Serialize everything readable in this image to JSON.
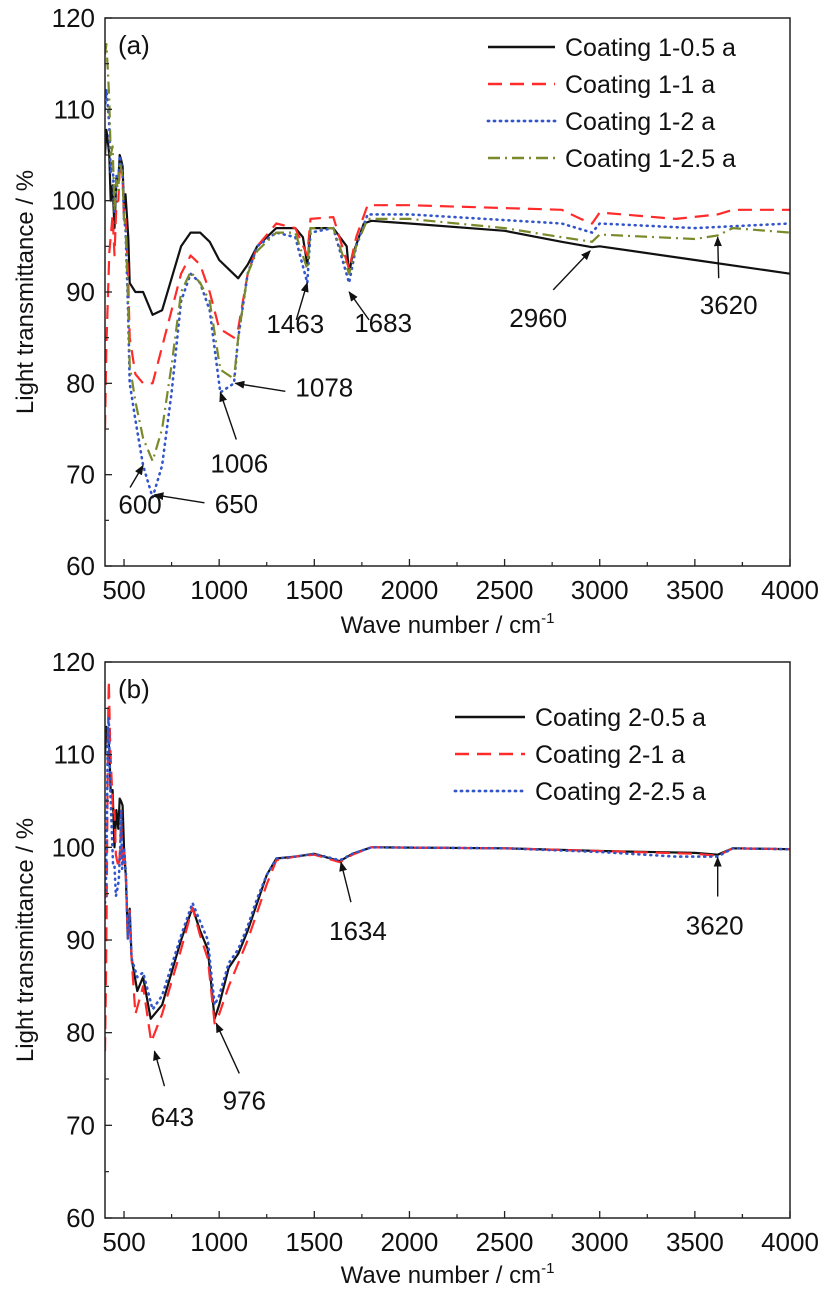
{
  "chart_data": [
    {
      "type": "line",
      "panel_label": "(a)",
      "xlabel": "Wave number / cm",
      "xlabel_sup": "-1",
      "ylabel": "Light transmittance / %",
      "xlim": [
        400,
        4000
      ],
      "ylim": [
        60,
        120
      ],
      "xticks": [
        500,
        1000,
        1500,
        2000,
        2500,
        3000,
        3500,
        4000
      ],
      "yticks": [
        60,
        70,
        80,
        90,
        100,
        110,
        120
      ],
      "legend_position": "top-right",
      "series": [
        {
          "name": "Coating 1-0.5 a",
          "color": "#111111",
          "style": "solid",
          "points": [
            [
              400,
              105
            ],
            [
              430,
              100
            ],
            [
              470,
              102
            ],
            [
              500,
              99
            ],
            [
              530,
              91
            ],
            [
              560,
              90
            ],
            [
              600,
              90
            ],
            [
              650,
              87.5
            ],
            [
              700,
              88
            ],
            [
              800,
              95
            ],
            [
              850,
              96.5
            ],
            [
              900,
              96.5
            ],
            [
              950,
              95.5
            ],
            [
              1000,
              93.5
            ],
            [
              1050,
              92.5
            ],
            [
              1100,
              91.5
            ],
            [
              1150,
              93
            ],
            [
              1200,
              95
            ],
            [
              1300,
              97
            ],
            [
              1400,
              97
            ],
            [
              1440,
              96
            ],
            [
              1463,
              93
            ],
            [
              1480,
              97
            ],
            [
              1600,
              97
            ],
            [
              1670,
              95
            ],
            [
              1683,
              92
            ],
            [
              1700,
              94
            ],
            [
              1760,
              97.5
            ],
            [
              1800,
              97.8
            ],
            [
              2000,
              97.5
            ],
            [
              2500,
              96.7
            ],
            [
              2800,
              95.5
            ],
            [
              2960,
              94.9
            ],
            [
              3000,
              95
            ],
            [
              3500,
              93.5
            ],
            [
              4000,
              92
            ]
          ]
        },
        {
          "name": "Coating 1-1 a",
          "color": "#ff2a2a",
          "style": "dash",
          "points": [
            [
              400,
              75
            ],
            [
              430,
              96
            ],
            [
              470,
              100
            ],
            [
              500,
              98
            ],
            [
              530,
              85
            ],
            [
              560,
              81
            ],
            [
              600,
              80
            ],
            [
              650,
              80
            ],
            [
              700,
              84
            ],
            [
              800,
              92
            ],
            [
              850,
              94
            ],
            [
              900,
              93
            ],
            [
              950,
              90
            ],
            [
              1000,
              86
            ],
            [
              1078,
              85
            ],
            [
              1100,
              86
            ],
            [
              1150,
              92
            ],
            [
              1200,
              95
            ],
            [
              1300,
              97.5
            ],
            [
              1400,
              97
            ],
            [
              1463,
              94
            ],
            [
              1480,
              98
            ],
            [
              1600,
              98.2
            ],
            [
              1683,
              92.5
            ],
            [
              1720,
              96
            ],
            [
              1780,
              99.5
            ],
            [
              2000,
              99.5
            ],
            [
              2800,
              99
            ],
            [
              2900,
              98
            ],
            [
              2960,
              97.5
            ],
            [
              3000,
              98.7
            ],
            [
              3400,
              98
            ],
            [
              3620,
              98.5
            ],
            [
              3700,
              99
            ],
            [
              4000,
              99
            ]
          ]
        },
        {
          "name": "Coating 1-2 a",
          "color": "#3355cc",
          "style": "dot",
          "points": [
            [
              400,
              110
            ],
            [
              430,
              103
            ],
            [
              470,
              102
            ],
            [
              500,
              98
            ],
            [
              530,
              80
            ],
            [
              560,
              76
            ],
            [
              600,
              71
            ],
            [
              650,
              67.5
            ],
            [
              700,
              71
            ],
            [
              750,
              79
            ],
            [
              800,
              89
            ],
            [
              850,
              92
            ],
            [
              900,
              91
            ],
            [
              950,
              88
            ],
            [
              1006,
              79
            ],
            [
              1078,
              80
            ],
            [
              1100,
              85
            ],
            [
              1150,
              92
            ],
            [
              1200,
              95
            ],
            [
              1300,
              96.5
            ],
            [
              1400,
              96
            ],
            [
              1463,
              91
            ],
            [
              1480,
              96.5
            ],
            [
              1600,
              97
            ],
            [
              1683,
              91
            ],
            [
              1720,
              95
            ],
            [
              1780,
              98.5
            ],
            [
              2000,
              98.5
            ],
            [
              2800,
              97.5
            ],
            [
              2960,
              96.5
            ],
            [
              3000,
              97.5
            ],
            [
              3500,
              97
            ],
            [
              4000,
              97.5
            ]
          ]
        },
        {
          "name": "Coating 1-2.5 a",
          "color": "#7a8a2a",
          "style": "dashdot",
          "points": [
            [
              400,
              116
            ],
            [
              430,
              105
            ],
            [
              470,
              101
            ],
            [
              500,
              98
            ],
            [
              530,
              82
            ],
            [
              560,
              78
            ],
            [
              600,
              74
            ],
            [
              650,
              71.5
            ],
            [
              700,
              75
            ],
            [
              750,
              82
            ],
            [
              800,
              90
            ],
            [
              850,
              92.2
            ],
            [
              900,
              91
            ],
            [
              950,
              89
            ],
            [
              1006,
              81.5
            ],
            [
              1078,
              80.5
            ],
            [
              1100,
              85
            ],
            [
              1150,
              92
            ],
            [
              1200,
              94.5
            ],
            [
              1300,
              96.5
            ],
            [
              1400,
              96.5
            ],
            [
              1463,
              92.5
            ],
            [
              1480,
              97
            ],
            [
              1600,
              97
            ],
            [
              1683,
              92
            ],
            [
              1720,
              95
            ],
            [
              1780,
              98
            ],
            [
              2000,
              98
            ],
            [
              2500,
              97
            ],
            [
              2800,
              96
            ],
            [
              2960,
              95.5
            ],
            [
              3000,
              96.3
            ],
            [
              3500,
              95.8
            ],
            [
              3620,
              96.2
            ],
            [
              3700,
              97
            ],
            [
              4000,
              96.5
            ]
          ]
        }
      ],
      "annotations": [
        {
          "label": "600",
          "x": 600,
          "y": 71
        },
        {
          "label": "650",
          "x": 660,
          "y": 67.8
        },
        {
          "label": "1006",
          "x": 1006,
          "y": 79
        },
        {
          "label": "1078",
          "x": 1085,
          "y": 80
        },
        {
          "label": "1463",
          "x": 1463,
          "y": 91
        },
        {
          "label": "1683",
          "x": 1683,
          "y": 90
        },
        {
          "label": "2960",
          "x": 2950,
          "y": 94.5
        },
        {
          "label": "3620",
          "x": 3620,
          "y": 96
        }
      ]
    },
    {
      "type": "line",
      "panel_label": "(b)",
      "xlabel": "Wave number / cm",
      "xlabel_sup": "-1",
      "ylabel": "Light transmittance / %",
      "xlim": [
        400,
        4000
      ],
      "ylim": [
        60,
        120
      ],
      "xticks": [
        500,
        1000,
        1500,
        2000,
        2500,
        3000,
        3500,
        4000
      ],
      "yticks": [
        60,
        70,
        80,
        90,
        100,
        110,
        120
      ],
      "legend_position": "top-right",
      "series": [
        {
          "name": "Coating 2-0.5 a",
          "color": "#111111",
          "style": "solid",
          "points": [
            [
              400,
              110
            ],
            [
              430,
              106
            ],
            [
              470,
              102
            ],
            [
              500,
              100
            ],
            [
              540,
              88
            ],
            [
              570,
              84.5
            ],
            [
              600,
              86
            ],
            [
              640,
              81.5
            ],
            [
              700,
              83
            ],
            [
              800,
              90
            ],
            [
              860,
              93.5
            ],
            [
              900,
              91
            ],
            [
              940,
              89
            ],
            [
              976,
              81.5
            ],
            [
              1000,
              83
            ],
            [
              1050,
              87
            ],
            [
              1100,
              88.5
            ],
            [
              1150,
              91
            ],
            [
              1200,
              94
            ],
            [
              1250,
              97
            ],
            [
              1300,
              98.8
            ],
            [
              1400,
              99
            ],
            [
              1500,
              99.3
            ],
            [
              1634,
              98.5
            ],
            [
              1700,
              99.3
            ],
            [
              1800,
              100
            ],
            [
              2500,
              99.9
            ],
            [
              3000,
              99.6
            ],
            [
              3500,
              99.4
            ],
            [
              3620,
              99.2
            ],
            [
              3700,
              99.9
            ],
            [
              4000,
              99.8
            ]
          ]
        },
        {
          "name": "Coating 2-1 a",
          "color": "#ff2a2a",
          "style": "dash",
          "points": [
            [
              400,
              78
            ],
            [
              420,
              118
            ],
            [
              450,
              104
            ],
            [
              480,
              100
            ],
            [
              500,
              100
            ],
            [
              540,
              88
            ],
            [
              560,
              82
            ],
            [
              600,
              85
            ],
            [
              643,
              79
            ],
            [
              700,
              82
            ],
            [
              800,
              89
            ],
            [
              860,
              93.5
            ],
            [
              900,
              90.5
            ],
            [
              940,
              88
            ],
            [
              976,
              81
            ],
            [
              1000,
              82
            ],
            [
              1050,
              85
            ],
            [
              1100,
              87.5
            ],
            [
              1150,
              90
            ],
            [
              1200,
              93
            ],
            [
              1250,
              96
            ],
            [
              1300,
              98.6
            ],
            [
              1400,
              99
            ],
            [
              1500,
              99.2
            ],
            [
              1634,
              98.4
            ],
            [
              1700,
              99.2
            ],
            [
              1800,
              100
            ],
            [
              2500,
              99.9
            ],
            [
              3000,
              99.6
            ],
            [
              3500,
              99.3
            ],
            [
              3620,
              99.1
            ],
            [
              3700,
              99.9
            ],
            [
              4000,
              99.8
            ]
          ]
        },
        {
          "name": "Coating 2-2.5 a",
          "color": "#3355cc",
          "style": "dot",
          "points": [
            [
              400,
              94
            ],
            [
              420,
              114
            ],
            [
              450,
              98
            ],
            [
              480,
              100
            ],
            [
              500,
              100
            ],
            [
              540,
              88
            ],
            [
              570,
              86
            ],
            [
              600,
              86.5
            ],
            [
              650,
              82.5
            ],
            [
              700,
              84
            ],
            [
              800,
              90.5
            ],
            [
              860,
              94
            ],
            [
              900,
              92
            ],
            [
              940,
              90
            ],
            [
              976,
              83
            ],
            [
              1000,
              84
            ],
            [
              1050,
              87.5
            ],
            [
              1100,
              89
            ],
            [
              1150,
              91.5
            ],
            [
              1200,
              94.5
            ],
            [
              1250,
              97
            ],
            [
              1300,
              98.8
            ],
            [
              1400,
              99
            ],
            [
              1500,
              99.3
            ],
            [
              1634,
              98.6
            ],
            [
              1700,
              99.3
            ],
            [
              1800,
              100
            ],
            [
              2500,
              99.9
            ],
            [
              3000,
              99.5
            ],
            [
              3400,
              99
            ],
            [
              3620,
              99
            ],
            [
              3700,
              99.9
            ],
            [
              4000,
              99.8
            ]
          ]
        }
      ],
      "annotations": [
        {
          "label": "643",
          "x": 660,
          "y": 78
        },
        {
          "label": "976",
          "x": 985,
          "y": 81
        },
        {
          "label": "1634",
          "x": 1640,
          "y": 98.4
        },
        {
          "label": "3620",
          "x": 3620,
          "y": 98.9
        }
      ]
    }
  ]
}
